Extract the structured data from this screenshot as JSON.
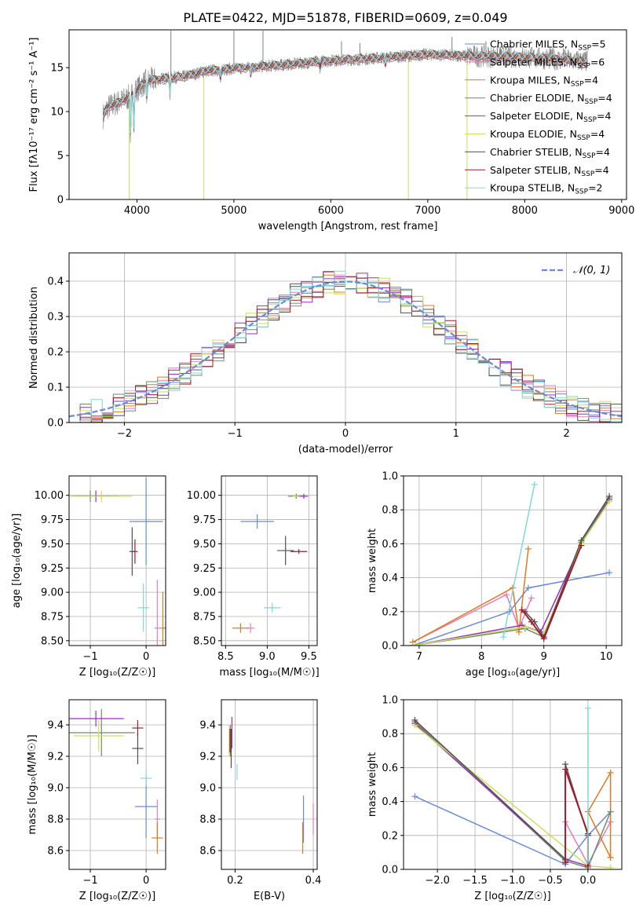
{
  "figure": {
    "title": "PLATE=0422, MJD=51878, FIBERID=0609, z=0.049"
  },
  "colors": {
    "series": [
      "#6a8ad6",
      "#e37fbb",
      "#e07a22",
      "#708a70",
      "#9a2fb8",
      "#c8e05a",
      "#505050",
      "#a01c2c",
      "#82d8d8"
    ],
    "ncurve": "#6a8ad6",
    "spec_grey": "#808080"
  },
  "chart_data": [
    {
      "id": "spectrum",
      "type": "line",
      "xlabel": "wavelength [Angstrom, rest frame]",
      "ylabel": "Flux [fλ10⁻¹⁷ erg cm⁻² s⁻¹ A⁻¹]",
      "xlim": [
        3300,
        9050
      ],
      "ylim": [
        0,
        19.3
      ],
      "xticks": [
        4000,
        5000,
        6000,
        7000,
        8000,
        9000
      ],
      "yticks": [
        0,
        5,
        10,
        15
      ],
      "grid": false,
      "legend_position": "top-right",
      "legend": [
        "Chabrier MILES, N_SSP=5",
        "Salpeter MILES, N_SSP=6",
        "Kroupa MILES, N_SSP=4",
        "Chabrier ELODIE, N_SSP=4",
        "Salpeter ELODIE, N_SSP=4",
        "Kroupa ELODIE, N_SSP=4",
        "Chabrier STELIB, N_SSP=4",
        "Salpeter STELIB, N_SSP=4",
        "Kroupa STELIB, N_SSP=2"
      ],
      "continuum": [
        [
          3650,
          9.5
        ],
        [
          3700,
          10.5
        ],
        [
          3800,
          11.0
        ],
        [
          3900,
          11.5
        ],
        [
          4000,
          12.5
        ],
        [
          4100,
          13.5
        ],
        [
          4300,
          13.8
        ],
        [
          4500,
          14.0
        ],
        [
          4700,
          14.6
        ],
        [
          5000,
          14.9
        ],
        [
          5500,
          15.3
        ],
        [
          6000,
          15.8
        ],
        [
          6500,
          16.1
        ],
        [
          7000,
          16.5
        ],
        [
          7500,
          16.3
        ],
        [
          8000,
          16.2
        ],
        [
          8500,
          15.8
        ],
        [
          8650,
          15.7
        ]
      ],
      "dips": [
        [
          3934,
          7.0
        ],
        [
          3969,
          8.0
        ],
        [
          4102,
          11.5
        ],
        [
          4340,
          12.0
        ],
        [
          4861,
          13.8
        ],
        [
          5175,
          14.2
        ],
        [
          5890,
          15.0
        ],
        [
          6563,
          15.3
        ]
      ],
      "spikes": [
        [
          3920,
          0
        ],
        [
          4350,
          19.2
        ],
        [
          4690,
          0
        ],
        [
          5000,
          19.2
        ],
        [
          5300,
          19.2
        ],
        [
          6110,
          18.0
        ],
        [
          6300,
          17.8
        ],
        [
          6800,
          0
        ],
        [
          7405,
          0
        ],
        [
          7250,
          18.5
        ],
        [
          7600,
          18.0
        ],
        [
          8400,
          17.2
        ]
      ]
    },
    {
      "id": "residuals",
      "type": "histogram",
      "xlabel": "(data-model)/error",
      "ylabel": "Normed distribution",
      "xlim": [
        -2.5,
        2.5
      ],
      "ylim": [
        0,
        0.48
      ],
      "xticks": [
        -2,
        -1,
        0,
        1,
        2
      ],
      "yticks": [
        0.0,
        0.1,
        0.2,
        0.3,
        0.4
      ],
      "grid": true,
      "bin_width": 0.1,
      "legend_position": "top-right",
      "legend": [
        "𝒩(0, 1)"
      ],
      "reference_curve": "normal(0,1)"
    },
    {
      "id": "age_vs_Z",
      "type": "errorbar",
      "xlabel": "Z [log₁₀(Z/Z☉)]",
      "ylabel": "age  [log₁₀(age/yr)]",
      "xlim": [
        -1.38,
        0.35
      ],
      "ylim": [
        8.45,
        10.2
      ],
      "xticks": [
        -1,
        0
      ],
      "yticks": [
        8.5,
        8.75,
        9.0,
        9.25,
        9.5,
        9.75,
        10.0
      ],
      "grid": true,
      "points": [
        {
          "x": 0.0,
          "y": 9.73,
          "xerr": 0.3,
          "yerr": 0.9,
          "c": 0
        },
        {
          "x": 0.2,
          "y": 8.63,
          "xerr": 0.05,
          "yerr": 1.0,
          "c": 1
        },
        {
          "x": 0.3,
          "y": 8.63,
          "xerr": 0.05,
          "yerr": 0.75,
          "c": 2
        },
        {
          "x": -0.25,
          "y": 9.42,
          "xerr": 0.05,
          "yerr": 0.5,
          "c": 6
        },
        {
          "x": -0.2,
          "y": 9.42,
          "xerr": 0.05,
          "yerr": 0.25,
          "c": 7
        },
        {
          "x": -0.05,
          "y": 8.84,
          "xerr": 0.1,
          "yerr": 0.5,
          "c": 8
        },
        {
          "x": -1.0,
          "y": 9.99,
          "xerr": 0.35,
          "yerr": 0.12,
          "c": 3
        },
        {
          "x": -0.9,
          "y": 9.99,
          "xerr": 0.4,
          "yerr": 0.12,
          "c": 4
        },
        {
          "x": -0.8,
          "y": 9.99,
          "xerr": 0.55,
          "yerr": 0.12,
          "c": 5
        }
      ]
    },
    {
      "id": "age_vs_mass",
      "type": "errorbar",
      "xlabel": "mass [log₁₀(M/M☉)]",
      "ylabel": "",
      "xlim": [
        8.45,
        9.6
      ],
      "ylim": [
        8.45,
        10.2
      ],
      "xticks": [
        8.5,
        9.0,
        9.5
      ],
      "yticks": [
        8.5,
        8.75,
        9.0,
        9.25,
        9.5,
        9.75,
        10.0
      ],
      "grid": true,
      "points": [
        {
          "x": 8.88,
          "y": 9.73,
          "xerr": 0.2,
          "yerr": 0.15,
          "c": 0
        },
        {
          "x": 8.8,
          "y": 8.63,
          "xerr": 0.05,
          "yerr": 0.1,
          "c": 1
        },
        {
          "x": 8.68,
          "y": 8.63,
          "xerr": 0.1,
          "yerr": 0.1,
          "c": 2
        },
        {
          "x": 9.22,
          "y": 9.43,
          "xerr": 0.1,
          "yerr": 0.3,
          "c": 6
        },
        {
          "x": 9.38,
          "y": 9.42,
          "xerr": 0.1,
          "yerr": 0.05,
          "c": 7
        },
        {
          "x": 9.06,
          "y": 8.84,
          "xerr": 0.1,
          "yerr": 0.1,
          "c": 8
        },
        {
          "x": 9.35,
          "y": 9.99,
          "xerr": 0.1,
          "yerr": 0.05,
          "c": 3
        },
        {
          "x": 9.44,
          "y": 9.99,
          "xerr": 0.05,
          "yerr": 0.05,
          "c": 4
        },
        {
          "x": 9.34,
          "y": 9.99,
          "xerr": 0.03,
          "yerr": 0.05,
          "c": 5
        }
      ]
    },
    {
      "id": "mw_vs_age",
      "type": "line",
      "xlabel": "age  [log₁₀(age/yr)]",
      "ylabel": "mass weight",
      "xlim": [
        6.75,
        10.25
      ],
      "ylim": [
        0,
        1.0
      ],
      "xticks": [
        7,
        8,
        9,
        10
      ],
      "yticks": [
        0.0,
        0.2,
        0.4,
        0.6,
        0.8,
        1.0
      ],
      "grid": true,
      "series": [
        {
          "c": 0,
          "x": [
            6.9,
            8.45,
            8.75,
            10.05
          ],
          "y": [
            0.0,
            0.2,
            0.34,
            0.43
          ]
        },
        {
          "c": 1,
          "x": [
            6.9,
            8.4,
            8.6,
            8.8
          ],
          "y": [
            0.02,
            0.3,
            0.1,
            0.28
          ]
        },
        {
          "c": 2,
          "x": [
            6.9,
            8.5,
            8.6,
            8.75
          ],
          "y": [
            0.02,
            0.34,
            0.08,
            0.57
          ]
        },
        {
          "c": 3,
          "x": [
            6.9,
            8.7,
            9.0,
            9.6,
            10.05
          ],
          "y": [
            0.0,
            0.1,
            0.05,
            0.61,
            0.87
          ]
        },
        {
          "c": 4,
          "x": [
            6.9,
            8.65,
            8.95,
            9.6,
            10.05
          ],
          "y": [
            0.0,
            0.12,
            0.08,
            0.6,
            0.86
          ]
        },
        {
          "c": 5,
          "x": [
            6.9,
            8.7,
            9.0,
            9.6,
            10.05
          ],
          "y": [
            0.0,
            0.11,
            0.07,
            0.6,
            0.85
          ]
        },
        {
          "c": 6,
          "x": [
            8.7,
            8.85,
            9.0,
            9.6,
            10.05
          ],
          "y": [
            0.2,
            0.14,
            0.05,
            0.62,
            0.88
          ]
        },
        {
          "c": 7,
          "x": [
            8.65,
            8.8,
            9.0,
            9.6
          ],
          "y": [
            0.21,
            0.14,
            0.04,
            0.59
          ]
        },
        {
          "c": 8,
          "x": [
            8.35,
            8.85
          ],
          "y": [
            0.05,
            0.95
          ]
        }
      ]
    },
    {
      "id": "mass_vs_Z",
      "type": "errorbar",
      "xlabel": "Z [log₁₀(Z/Z☉)]",
      "ylabel": "mass [log₁₀(M/M☉)]",
      "xlim": [
        -1.38,
        0.35
      ],
      "ylim": [
        8.48,
        9.56
      ],
      "xticks": [
        -1,
        0
      ],
      "yticks": [
        8.6,
        8.8,
        9.0,
        9.2,
        9.4
      ],
      "grid": true,
      "points": [
        {
          "x": 0.0,
          "y": 8.88,
          "xerr": 0.2,
          "yerr": 0.4,
          "c": 0
        },
        {
          "x": 0.2,
          "y": 8.8,
          "xerr": 0.05,
          "yerr": 0.25,
          "c": 1
        },
        {
          "x": 0.2,
          "y": 8.68,
          "xerr": 0.1,
          "yerr": 0.2,
          "c": 2
        },
        {
          "x": -0.15,
          "y": 9.25,
          "xerr": 0.1,
          "yerr": 0.2,
          "c": 6
        },
        {
          "x": -0.15,
          "y": 9.38,
          "xerr": 0.1,
          "yerr": 0.1,
          "c": 7
        },
        {
          "x": 0.0,
          "y": 9.06,
          "xerr": 0.1,
          "yerr": 0.1,
          "c": 8
        },
        {
          "x": -0.8,
          "y": 9.35,
          "xerr": 0.6,
          "yerr": 0.3,
          "c": 3
        },
        {
          "x": -0.9,
          "y": 9.44,
          "xerr": 0.5,
          "yerr": 0.1,
          "c": 4
        },
        {
          "x": -0.85,
          "y": 9.33,
          "xerr": 0.45,
          "yerr": 0.2,
          "c": 5
        }
      ]
    },
    {
      "id": "mass_vs_ebv",
      "type": "errorbar",
      "xlabel": "E(B-V)",
      "ylabel": "",
      "xlim": [
        0.165,
        0.41
      ],
      "ylim": [
        8.48,
        9.56
      ],
      "xticks": [
        0.2,
        0.4
      ],
      "yticks": [
        8.6,
        8.8,
        9.0,
        9.2,
        9.4
      ],
      "grid": true,
      "points": [
        {
          "x": 0.375,
          "y": 8.8,
          "xerr": 0,
          "yerr": 0.3,
          "c": 0
        },
        {
          "x": 0.4,
          "y": 8.8,
          "xerr": 0,
          "yerr": 0.2,
          "c": 1
        },
        {
          "x": 0.373,
          "y": 8.68,
          "xerr": 0,
          "yerr": 0.2,
          "c": 2
        },
        {
          "x": 0.188,
          "y": 9.3,
          "xerr": 0,
          "yerr": 0.2,
          "c": 3
        },
        {
          "x": 0.192,
          "y": 9.35,
          "xerr": 0,
          "yerr": 0.2,
          "c": 4
        },
        {
          "x": 0.185,
          "y": 9.3,
          "xerr": 0,
          "yerr": 0.2,
          "c": 5
        },
        {
          "x": 0.19,
          "y": 9.25,
          "xerr": 0,
          "yerr": 0.25,
          "c": 6
        },
        {
          "x": 0.187,
          "y": 9.3,
          "xerr": 0,
          "yerr": 0.15,
          "c": 7
        },
        {
          "x": 0.205,
          "y": 9.1,
          "xerr": 0,
          "yerr": 0.1,
          "c": 8
        }
      ]
    },
    {
      "id": "mw_vs_Z",
      "type": "line",
      "xlabel": "Z [log₁₀(Z/Z☉)]",
      "ylabel": "mass weight",
      "xlim": [
        -2.45,
        0.45
      ],
      "ylim": [
        0,
        1.0
      ],
      "xticks": [
        -2.0,
        -1.5,
        -1.0,
        -0.5,
        0.0
      ],
      "yticks": [
        0.0,
        0.2,
        0.4,
        0.6,
        0.8,
        1.0
      ],
      "grid": true,
      "series": [
        {
          "c": 0,
          "x": [
            -2.3,
            -0.3,
            0.0,
            0.3
          ],
          "y": [
            0.43,
            0.03,
            0.2,
            0.34
          ]
        },
        {
          "c": 1,
          "x": [
            -0.3,
            0.0,
            0.3
          ],
          "y": [
            0.28,
            0.03,
            0.28
          ]
        },
        {
          "c": 2,
          "x": [
            0.3,
            0.0,
            0.3,
            0.3
          ],
          "y": [
            0.07,
            0.34,
            0.57,
            0.07
          ]
        },
        {
          "c": 3,
          "x": [
            -2.3,
            -0.3,
            0.0,
            0.3
          ],
          "y": [
            0.87,
            0.05,
            0.01,
            0.34
          ]
        },
        {
          "c": 4,
          "x": [
            -2.3,
            -0.3,
            0.0
          ],
          "y": [
            0.86,
            0.06,
            0.02
          ]
        },
        {
          "c": 5,
          "x": [
            -2.3,
            0.0,
            0.3
          ],
          "y": [
            0.85,
            0.02,
            0.01
          ]
        },
        {
          "c": 6,
          "x": [
            -2.3,
            -0.3,
            -0.3,
            0.0
          ],
          "y": [
            0.88,
            0.06,
            0.62,
            0.2
          ]
        },
        {
          "c": 7,
          "x": [
            -0.3,
            -0.3,
            0.0,
            0.0
          ],
          "y": [
            0.04,
            0.59,
            0.21,
            0.02
          ]
        },
        {
          "c": 8,
          "x": [
            0.0,
            0.0
          ],
          "y": [
            0.05,
            0.95
          ]
        }
      ]
    }
  ]
}
